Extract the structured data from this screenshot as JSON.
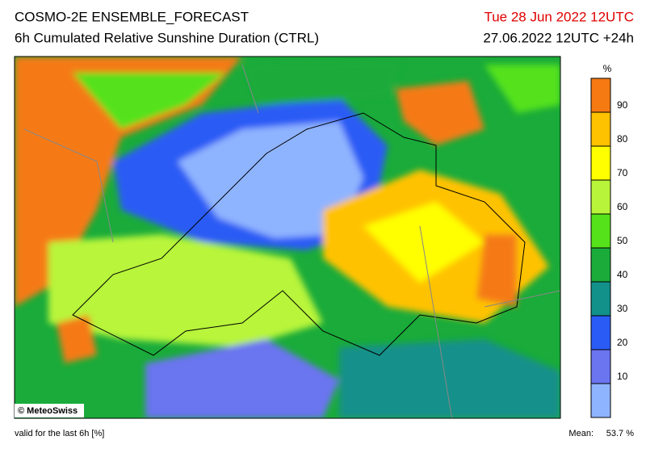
{
  "header": {
    "title": "COSMO-2E ENSEMBLE_FORECAST",
    "subtitle": "6h Cumulated Relative Sunshine Duration (CTRL)",
    "valid_date": "Tue 28 Jun 2022 12UTC",
    "run": "27.06.2022 12UTC +24h"
  },
  "colorbar": {
    "unit": "%",
    "range": [
      0,
      100
    ],
    "ticks": [
      10,
      20,
      30,
      40,
      50,
      60,
      70,
      80,
      90
    ],
    "colors": [
      "#8fb4ff",
      "#6b75f0",
      "#2a5cf5",
      "#12908a",
      "#1aab3a",
      "#55e21a",
      "#b8f53a",
      "#ffff00",
      "#ffc200",
      "#f57a12"
    ]
  },
  "map": {
    "credit": "© MeteoSwiss"
  },
  "footer": {
    "note": "valid for the last 6h [%]",
    "mean_label": "Mean:",
    "mean_value": "53.7 %"
  }
}
